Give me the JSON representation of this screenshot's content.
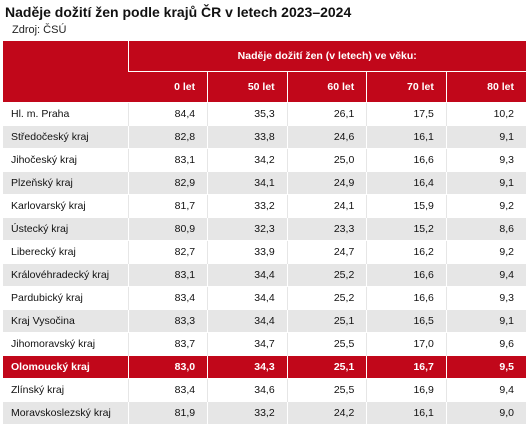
{
  "title": "Naděje dožití žen podle krajů ČR v letech 2023–2024",
  "source": "Zdroj: ČSÚ",
  "table": {
    "super_header": "Naděje dožití žen (v letech) ve věku:",
    "columns": [
      "0 let",
      "50 let",
      "60 let",
      "70 let",
      "80 let"
    ],
    "highlight_region": "Olomoucký kraj",
    "rows": [
      {
        "region": "Hl. m. Praha",
        "values": [
          "84,4",
          "35,3",
          "26,1",
          "17,5",
          "10,2"
        ]
      },
      {
        "region": "Středočeský kraj",
        "values": [
          "82,8",
          "33,8",
          "24,6",
          "16,1",
          "9,1"
        ]
      },
      {
        "region": "Jihočeský kraj",
        "values": [
          "83,1",
          "34,2",
          "25,0",
          "16,6",
          "9,3"
        ]
      },
      {
        "region": "Plzeňský kraj",
        "values": [
          "82,9",
          "34,1",
          "24,9",
          "16,4",
          "9,1"
        ]
      },
      {
        "region": "Karlovarský kraj",
        "values": [
          "81,7",
          "33,2",
          "24,1",
          "15,9",
          "9,2"
        ]
      },
      {
        "region": "Ústecký kraj",
        "values": [
          "80,9",
          "32,3",
          "23,3",
          "15,2",
          "8,6"
        ]
      },
      {
        "region": "Liberecký kraj",
        "values": [
          "82,7",
          "33,9",
          "24,7",
          "16,2",
          "9,2"
        ]
      },
      {
        "region": "Královéhradecký kraj",
        "values": [
          "83,1",
          "34,4",
          "25,2",
          "16,6",
          "9,4"
        ]
      },
      {
        "region": "Pardubický kraj",
        "values": [
          "83,4",
          "34,4",
          "25,2",
          "16,6",
          "9,3"
        ]
      },
      {
        "region": "Kraj Vysočina",
        "values": [
          "83,3",
          "34,4",
          "25,1",
          "16,5",
          "9,1"
        ]
      },
      {
        "region": "Jihomoravský kraj",
        "values": [
          "83,7",
          "34,7",
          "25,5",
          "17,0",
          "9,6"
        ]
      },
      {
        "region": "Olomoucký kraj",
        "values": [
          "83,0",
          "34,3",
          "25,1",
          "16,7",
          "9,5"
        ]
      },
      {
        "region": "Zlínský kraj",
        "values": [
          "83,4",
          "34,6",
          "25,5",
          "16,9",
          "9,4"
        ]
      },
      {
        "region": "Moravskoslezský kraj",
        "values": [
          "81,9",
          "33,2",
          "24,2",
          "16,1",
          "9,0"
        ]
      }
    ]
  },
  "colors": {
    "accent": "#c1071a",
    "stripe": "#e6e6e6"
  }
}
